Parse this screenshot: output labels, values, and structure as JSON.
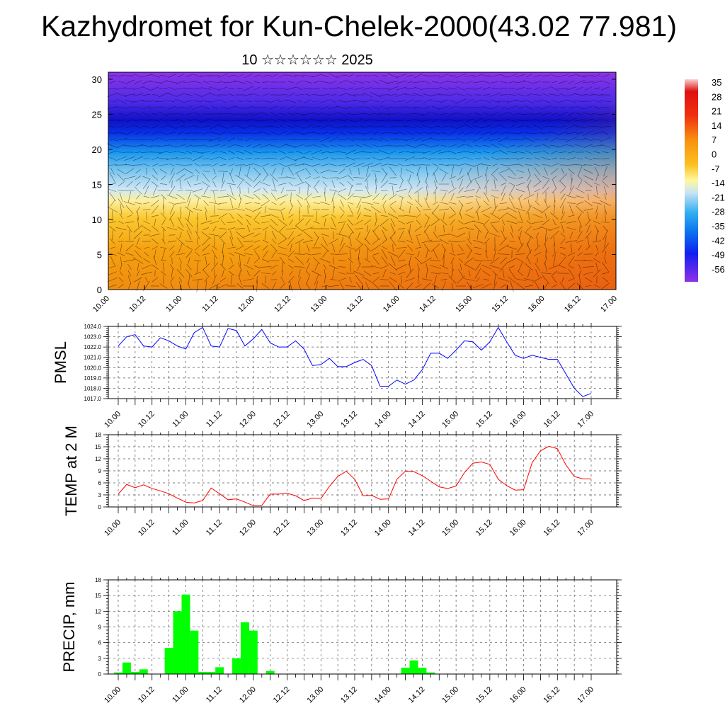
{
  "header": {
    "title": "Kazhydromet for Kun-Chelek-2000(43.02 77.981)",
    "subtitle": "10 ☆☆☆☆☆☆ 2025"
  },
  "colors": {
    "pmsl_line": "#0000ff",
    "temp_line": "#ff0000",
    "precip_bars": "#00ff00"
  },
  "time_labels": [
    "10.00",
    "10.12",
    "11.00",
    "11.12",
    "12.00",
    "12.12",
    "13.00",
    "13.12",
    "14.00",
    "14.12",
    "15.00",
    "15.12",
    "16.00",
    "16.12",
    "17.00"
  ],
  "chart_data": [
    {
      "type": "heatmap",
      "name": "cross-section",
      "x_tick_labels": [
        "10.00",
        "10.12",
        "11.00",
        "11.12",
        "12.00",
        "12.12",
        "13.00",
        "13.12",
        "14.00",
        "14.12",
        "15.00",
        "15.12",
        "16.00",
        "16.12",
        "17.00"
      ],
      "y_ticks": [
        0,
        5,
        10,
        15,
        20,
        25,
        30
      ],
      "ylim": [
        0,
        31
      ],
      "colorbar_labels": [
        "35",
        "28",
        "21",
        "14",
        "7",
        "0",
        "-7",
        "-14",
        "-21",
        "-28",
        "-35",
        "-42",
        "-49",
        "-56"
      ],
      "overlay": "wind vectors"
    },
    {
      "type": "line",
      "ylabel": "PMSL",
      "ylim": [
        1017,
        1024
      ],
      "y_ticks": [
        "1017.0",
        "1018.0",
        "1019.0",
        "1020.0",
        "1021.0",
        "1022.0",
        "1023.0",
        "1024.0"
      ],
      "x_tick_labels": [
        "10.00",
        "10.12",
        "11.00",
        "11.12",
        "12.00",
        "12.12",
        "13.00",
        "13.12",
        "14.00",
        "14.12",
        "15.00",
        "15.12",
        "16.00",
        "16.12",
        "17.00"
      ],
      "step_hours": 3,
      "values": [
        1022.1,
        1023.0,
        1023.2,
        1022.1,
        1022.0,
        1022.9,
        1022.6,
        1022.1,
        1021.8,
        1023.4,
        1023.9,
        1022.1,
        1022.0,
        1023.8,
        1023.6,
        1022.1,
        1022.8,
        1023.7,
        1022.4,
        1022.0,
        1022.0,
        1022.6,
        1021.8,
        1020.2,
        1020.3,
        1020.9,
        1020.1,
        1020.1,
        1020.5,
        1020.8,
        1020.2,
        1018.2,
        1018.2,
        1018.8,
        1018.4,
        1018.8,
        1019.8,
        1021.4,
        1021.4,
        1020.9,
        1021.7,
        1022.6,
        1022.5,
        1021.7,
        1022.5,
        1023.9,
        1022.5,
        1021.2,
        1020.9,
        1021.2,
        1021.0,
        1020.8,
        1020.8,
        1019.4,
        1018.0,
        1017.2,
        1017.5
      ]
    },
    {
      "type": "line",
      "ylabel": "TEMP at 2 M",
      "ylim": [
        0,
        18
      ],
      "y_ticks": [
        "0",
        "3",
        "6",
        "9",
        "12",
        "15",
        "18"
      ],
      "x_tick_labels": [
        "10.00",
        "10.12",
        "11.00",
        "11.12",
        "12.00",
        "12.12",
        "13.00",
        "13.12",
        "14.00",
        "14.12",
        "15.00",
        "15.12",
        "16.00",
        "16.12",
        "17.00"
      ],
      "step_hours": 3,
      "values": [
        3.2,
        5.6,
        4.8,
        5.5,
        4.6,
        4.0,
        3.3,
        2.2,
        1.2,
        1.0,
        1.6,
        4.7,
        3.3,
        1.8,
        2.0,
        1.2,
        0.3,
        0.4,
        3.2,
        3.2,
        3.4,
        2.8,
        1.6,
        2.2,
        2.1,
        5.1,
        7.6,
        8.9,
        6.9,
        2.8,
        2.9,
        1.9,
        2.0,
        6.9,
        8.9,
        8.8,
        7.8,
        6.4,
        5.0,
        4.6,
        5.2,
        8.6,
        10.9,
        11.2,
        10.6,
        6.9,
        5.3,
        4.2,
        4.3,
        11.0,
        14.0,
        15.1,
        14.5,
        10.5,
        7.6,
        7.0,
        7.0
      ]
    },
    {
      "type": "bar",
      "ylabel": "PRECIP, mm",
      "ylim": [
        0,
        18
      ],
      "y_ticks": [
        "0",
        "3",
        "6",
        "9",
        "12",
        "15",
        "18"
      ],
      "x_tick_labels": [
        "10.00",
        "10.12",
        "11.00",
        "11.12",
        "12.00",
        "12.12",
        "13.00",
        "13.12",
        "14.00",
        "14.12",
        "15.00",
        "15.12",
        "16.00",
        "16.12",
        "17.00"
      ],
      "step_hours": 3,
      "values": [
        0.3,
        2.2,
        0.4,
        0.9,
        0.0,
        0.0,
        5.0,
        12.0,
        15.2,
        8.3,
        0.4,
        0.4,
        1.3,
        0.0,
        3.0,
        9.9,
        8.3,
        0.0,
        0.6,
        0.0,
        0.0,
        0.0,
        0.0,
        0.0,
        0.0,
        0.0,
        0.0,
        0.0,
        0.0,
        0.0,
        0.0,
        0.0,
        0.0,
        0.0,
        1.2,
        2.6,
        1.2,
        0.3,
        0.0,
        0.0,
        0.0,
        0.0,
        0.0,
        0.0,
        0.0,
        0.0,
        0.0,
        0.0,
        0.0,
        0.0,
        0.0,
        0.0,
        0.0,
        0.0,
        0.0,
        0.0
      ]
    }
  ]
}
